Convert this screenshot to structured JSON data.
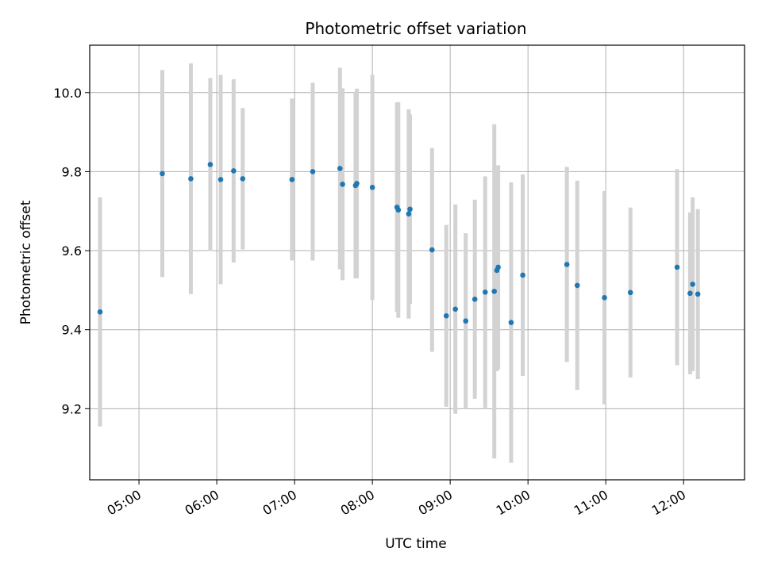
{
  "chart_data": {
    "type": "scatter",
    "title": "Photometric offset variation",
    "xlabel": "UTC time",
    "ylabel": "Photometric offset",
    "x_unit": "UTC time (HH:MM)",
    "xlim": [
      "04:22",
      "12:47"
    ],
    "ylim": [
      9.02,
      10.12
    ],
    "xticks": [
      "05:00",
      "06:00",
      "07:00",
      "08:00",
      "09:00",
      "10:00",
      "11:00",
      "12:00"
    ],
    "yticks": [
      9.2,
      9.4,
      9.6,
      9.8,
      10.0
    ],
    "ytick_labels": [
      "9.2",
      "9.4",
      "9.6",
      "9.8",
      "10.0"
    ],
    "grid": true,
    "point_color": "#1f77b4",
    "errorbar_color": "#d3d3d3",
    "points": [
      {
        "time": "04:30",
        "y": 9.445,
        "err": 0.29
      },
      {
        "time": "05:18",
        "y": 9.795,
        "err": 0.262
      },
      {
        "time": "05:40",
        "y": 9.782,
        "err": 0.292
      },
      {
        "time": "05:55",
        "y": 9.818,
        "err": 0.219
      },
      {
        "time": "06:03",
        "y": 9.78,
        "err": 0.265
      },
      {
        "time": "06:13",
        "y": 9.802,
        "err": 0.232
      },
      {
        "time": "06:20",
        "y": 9.782,
        "err": 0.179
      },
      {
        "time": "06:58",
        "y": 9.78,
        "err": 0.205
      },
      {
        "time": "07:14",
        "y": 9.8,
        "err": 0.225
      },
      {
        "time": "07:35",
        "y": 9.808,
        "err": 0.255
      },
      {
        "time": "07:37",
        "y": 9.768,
        "err": 0.243
      },
      {
        "time": "07:47",
        "y": 9.765,
        "err": 0.235
      },
      {
        "time": "07:48",
        "y": 9.77,
        "err": 0.24
      },
      {
        "time": "08:00",
        "y": 9.76,
        "err": 0.285
      },
      {
        "time": "08:19",
        "y": 9.71,
        "err": 0.265
      },
      {
        "time": "08:20",
        "y": 9.703,
        "err": 0.273
      },
      {
        "time": "08:28",
        "y": 9.693,
        "err": 0.265
      },
      {
        "time": "08:29",
        "y": 9.705,
        "err": 0.24
      },
      {
        "time": "08:46",
        "y": 9.602,
        "err": 0.258
      },
      {
        "time": "08:57",
        "y": 9.435,
        "err": 0.23
      },
      {
        "time": "09:04",
        "y": 9.452,
        "err": 0.265
      },
      {
        "time": "09:12",
        "y": 9.422,
        "err": 0.222
      },
      {
        "time": "09:19",
        "y": 9.477,
        "err": 0.252
      },
      {
        "time": "09:27",
        "y": 9.495,
        "err": 0.293
      },
      {
        "time": "09:34",
        "y": 9.497,
        "err": 0.423
      },
      {
        "time": "09:36",
        "y": 9.55,
        "err": 0.255
      },
      {
        "time": "09:37",
        "y": 9.558,
        "err": 0.258
      },
      {
        "time": "09:47",
        "y": 9.418,
        "err": 0.355
      },
      {
        "time": "09:56",
        "y": 9.538,
        "err": 0.255
      },
      {
        "time": "10:30",
        "y": 9.565,
        "err": 0.247
      },
      {
        "time": "10:38",
        "y": 9.512,
        "err": 0.265
      },
      {
        "time": "10:59",
        "y": 9.481,
        "err": 0.27
      },
      {
        "time": "11:19",
        "y": 9.494,
        "err": 0.215
      },
      {
        "time": "11:55",
        "y": 9.558,
        "err": 0.248
      },
      {
        "time": "12:05",
        "y": 9.492,
        "err": 0.205
      },
      {
        "time": "12:07",
        "y": 9.515,
        "err": 0.22
      },
      {
        "time": "12:11",
        "y": 9.49,
        "err": 0.215
      }
    ]
  }
}
